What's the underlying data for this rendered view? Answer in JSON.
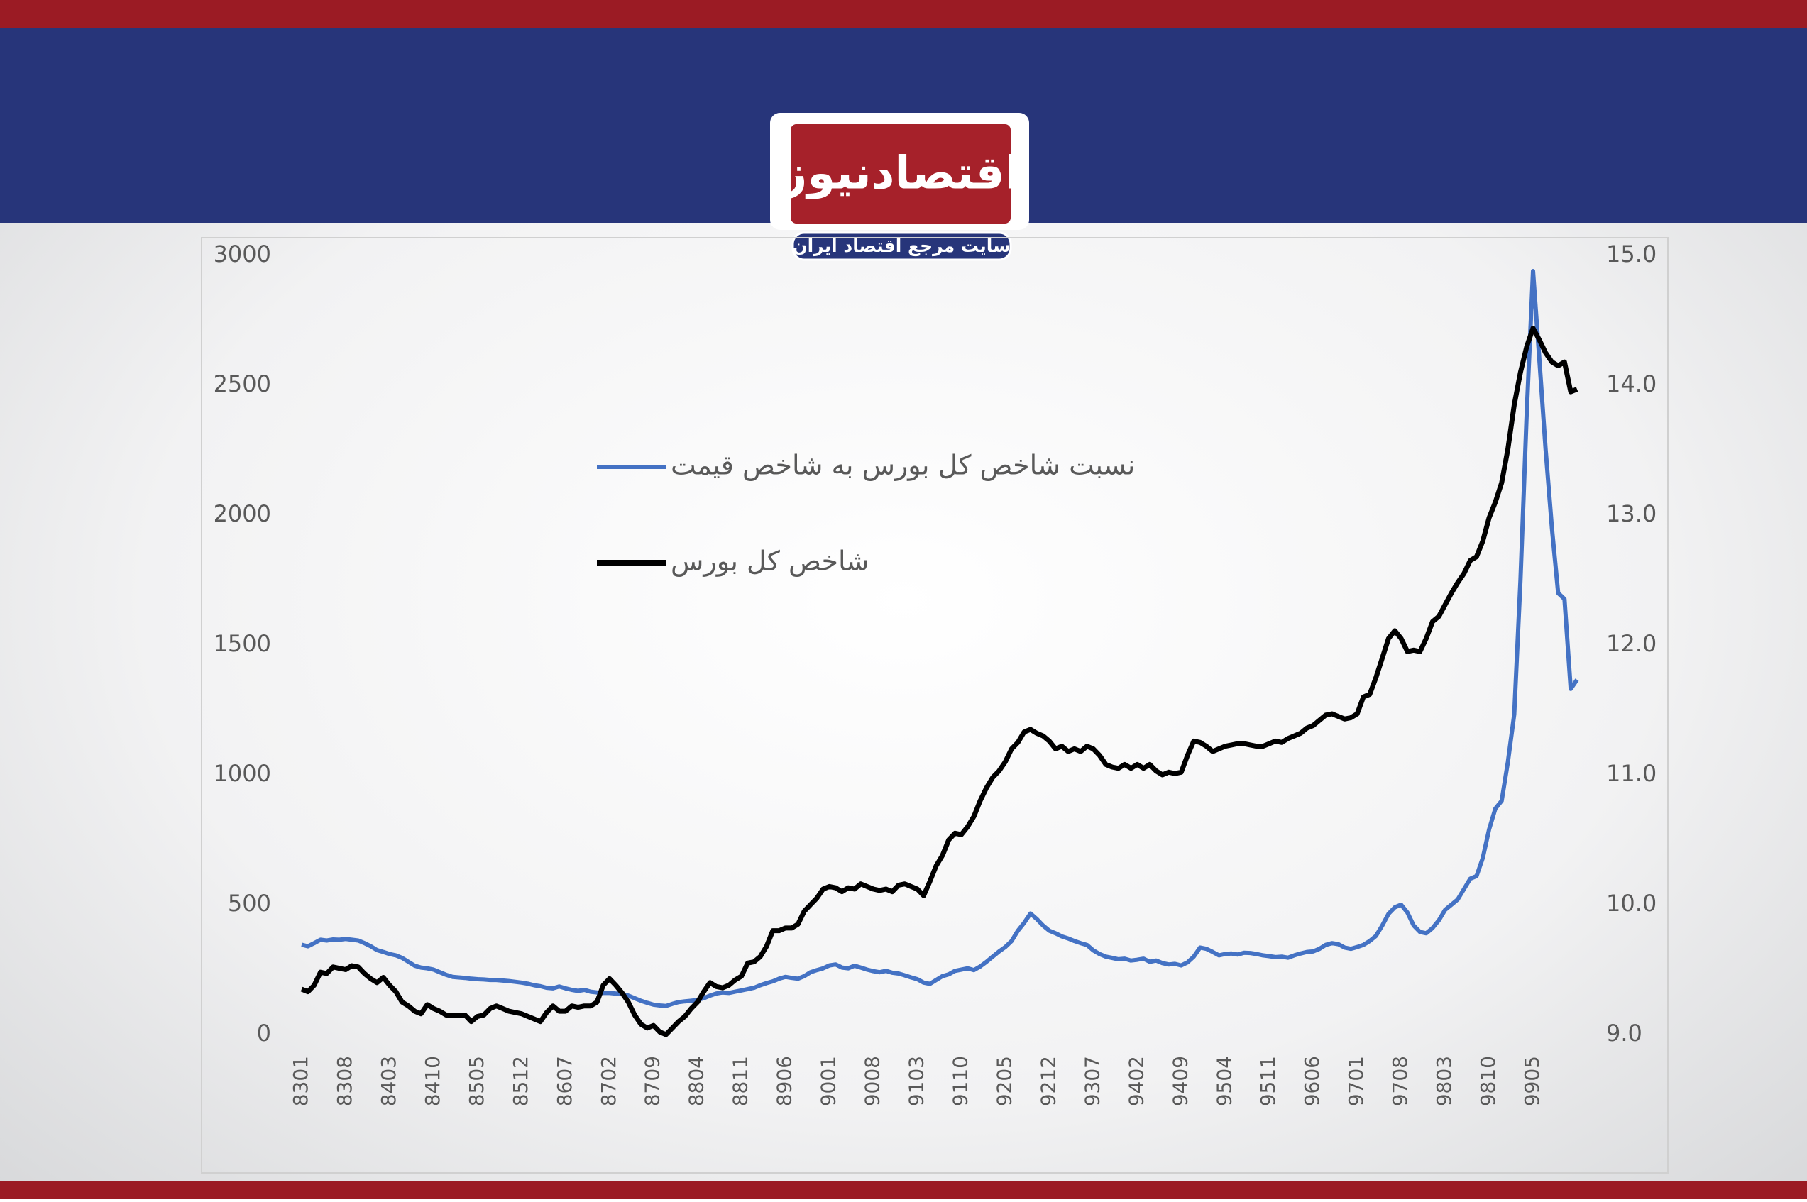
{
  "header": {
    "logo": "اقتصادنیوز",
    "tagline": "سایت مرجع اقتصاد ایران"
  },
  "chart_data": {
    "type": "line",
    "categories": [
      "8301",
      null,
      null,
      null,
      null,
      null,
      null,
      "8308",
      null,
      null,
      null,
      null,
      null,
      null,
      "8403",
      null,
      null,
      null,
      null,
      null,
      null,
      "8410",
      null,
      null,
      null,
      null,
      null,
      null,
      "8505",
      null,
      null,
      null,
      null,
      null,
      null,
      "8512",
      null,
      null,
      null,
      null,
      null,
      null,
      "8607",
      null,
      null,
      null,
      null,
      null,
      null,
      "8702",
      null,
      null,
      null,
      null,
      null,
      null,
      "8709",
      null,
      null,
      null,
      null,
      null,
      null,
      "8804",
      null,
      null,
      null,
      null,
      null,
      null,
      "8811",
      null,
      null,
      null,
      null,
      null,
      null,
      "8906",
      null,
      null,
      null,
      null,
      null,
      null,
      "9001",
      null,
      null,
      null,
      null,
      null,
      null,
      "9008",
      null,
      null,
      null,
      null,
      null,
      null,
      "9103",
      null,
      null,
      null,
      null,
      null,
      null,
      "9110",
      null,
      null,
      null,
      null,
      null,
      null,
      "9205",
      null,
      null,
      null,
      null,
      null,
      null,
      "9212",
      null,
      null,
      null,
      null,
      null,
      null,
      "9307",
      null,
      null,
      null,
      null,
      null,
      null,
      "9402",
      null,
      null,
      null,
      null,
      null,
      null,
      "9409",
      null,
      null,
      null,
      null,
      null,
      null,
      "9504",
      null,
      null,
      null,
      null,
      null,
      null,
      "9511",
      null,
      null,
      null,
      null,
      null,
      null,
      "9606",
      null,
      null,
      null,
      null,
      null,
      null,
      "9701",
      null,
      null,
      null,
      null,
      null,
      null,
      "9708",
      null,
      null,
      null,
      null,
      null,
      null,
      "9803",
      null,
      null,
      null,
      null,
      null,
      null,
      "9810",
      null,
      null,
      null,
      null,
      null,
      null,
      "9905",
      null,
      null,
      null,
      null,
      null,
      null,
      null
    ],
    "series": [
      {
        "name": "نسبت شاخص کل بورس به شاخص قیمت",
        "color": "#4472c4",
        "values": [
          346,
          340,
          352,
          365,
          362,
          366,
          365,
          368,
          365,
          362,
          352,
          340,
          325,
          318,
          310,
          305,
          295,
          280,
          265,
          258,
          255,
          250,
          240,
          230,
          222,
          220,
          218,
          215,
          213,
          212,
          210,
          210,
          208,
          206,
          203,
          200,
          196,
          190,
          186,
          180,
          178,
          185,
          178,
          172,
          168,
          172,
          165,
          162,
          160,
          160,
          158,
          155,
          150,
          140,
          130,
          122,
          115,
          112,
          110,
          118,
          125,
          128,
          130,
          133,
          140,
          150,
          158,
          162,
          160,
          165,
          170,
          175,
          180,
          190,
          198,
          205,
          215,
          222,
          218,
          215,
          225,
          240,
          248,
          255,
          266,
          270,
          258,
          255,
          265,
          258,
          250,
          244,
          240,
          245,
          238,
          235,
          228,
          220,
          213,
          200,
          195,
          210,
          225,
          232,
          245,
          250,
          255,
          248,
          262,
          280,
          300,
          320,
          337,
          360,
          400,
          430,
          466,
          445,
          420,
          400,
          390,
          378,
          370,
          360,
          352,
          345,
          324,
          310,
          300,
          295,
          290,
          292,
          285,
          288,
          292,
          280,
          285,
          275,
          270,
          272,
          266,
          278,
          300,
          335,
          330,
          318,
          305,
          310,
          312,
          308,
          315,
          314,
          310,
          305,
          302,
          298,
          300,
          296,
          305,
          312,
          318,
          320,
          330,
          345,
          352,
          348,
          335,
          330,
          337,
          345,
          360,
          380,
          420,
          465,
          490,
          500,
          470,
          420,
          395,
          390,
          410,
          440,
          480,
          500,
          520,
          560,
          600,
          610,
          680,
          790,
          870,
          900,
          1050,
          1233,
          1750,
          2400,
          2940,
          2600,
          2254,
          1950,
          1700,
          1677,
          1331,
          1366
        ]
      },
      {
        "name": "شاخص کل بورس",
        "color": "#000000",
        "axis": "y2",
        "values": [
          9.35,
          9.33,
          9.38,
          9.48,
          9.47,
          9.52,
          9.51,
          9.5,
          9.53,
          9.52,
          9.47,
          9.43,
          9.4,
          9.44,
          9.38,
          9.33,
          9.25,
          9.22,
          9.18,
          9.16,
          9.23,
          9.2,
          9.18,
          9.15,
          9.15,
          9.15,
          9.15,
          9.1,
          9.14,
          9.15,
          9.2,
          9.22,
          9.2,
          9.18,
          9.17,
          9.16,
          9.14,
          9.12,
          9.1,
          9.17,
          9.22,
          9.18,
          9.18,
          9.22,
          9.21,
          9.22,
          9.22,
          9.25,
          9.38,
          9.43,
          9.38,
          9.32,
          9.25,
          9.15,
          9.08,
          9.05,
          9.07,
          9.02,
          9.0,
          9.05,
          9.1,
          9.14,
          9.2,
          9.25,
          9.33,
          9.4,
          9.37,
          9.36,
          9.38,
          9.42,
          9.45,
          9.55,
          9.56,
          9.6,
          9.68,
          9.8,
          9.8,
          9.82,
          9.82,
          9.85,
          9.95,
          10.0,
          10.05,
          10.12,
          10.14,
          10.13,
          10.1,
          10.13,
          10.12,
          10.16,
          10.14,
          10.12,
          10.11,
          10.12,
          10.1,
          10.15,
          10.16,
          10.14,
          10.12,
          10.07,
          10.18,
          10.3,
          10.38,
          10.5,
          10.55,
          10.54,
          10.6,
          10.68,
          10.8,
          10.9,
          10.98,
          11.03,
          11.1,
          11.2,
          11.25,
          11.33,
          11.35,
          11.32,
          11.3,
          11.26,
          11.2,
          11.22,
          11.18,
          11.2,
          11.18,
          11.22,
          11.2,
          11.15,
          11.08,
          11.06,
          11.05,
          11.08,
          11.05,
          11.08,
          11.05,
          11.08,
          11.03,
          11.0,
          11.02,
          11.01,
          11.02,
          11.15,
          11.26,
          11.25,
          11.22,
          11.18,
          11.2,
          11.22,
          11.23,
          11.24,
          11.24,
          11.23,
          11.22,
          11.22,
          11.24,
          11.26,
          11.25,
          11.28,
          11.3,
          11.32,
          11.36,
          11.38,
          11.42,
          11.46,
          11.47,
          11.45,
          11.43,
          11.44,
          11.47,
          11.6,
          11.62,
          11.75,
          11.9,
          12.05,
          12.11,
          12.05,
          11.95,
          11.96,
          11.95,
          12.05,
          12.18,
          12.22,
          12.31,
          12.4,
          12.48,
          12.55,
          12.65,
          12.68,
          12.8,
          12.98,
          13.1,
          13.25,
          13.51,
          13.85,
          14.1,
          14.3,
          14.44,
          14.35,
          14.25,
          14.18,
          14.15,
          14.18,
          13.95,
          13.97
        ]
      }
    ],
    "ylim": [
      0,
      3000
    ],
    "yticks": [
      0,
      500,
      1000,
      1500,
      2000,
      2500,
      3000
    ],
    "y2lim": [
      9,
      15
    ],
    "y2ticks": [
      {
        "value": 9,
        "label": "9.0"
      },
      {
        "value": 10,
        "label": "10.0"
      },
      {
        "value": 11,
        "label": "11.0"
      },
      {
        "value": 12,
        "label": "12.0"
      },
      {
        "value": 13,
        "label": "13.0"
      },
      {
        "value": 14,
        "label": "14.0"
      },
      {
        "value": 15,
        "label": "15.0"
      }
    ],
    "grid": false,
    "legend": "center"
  }
}
